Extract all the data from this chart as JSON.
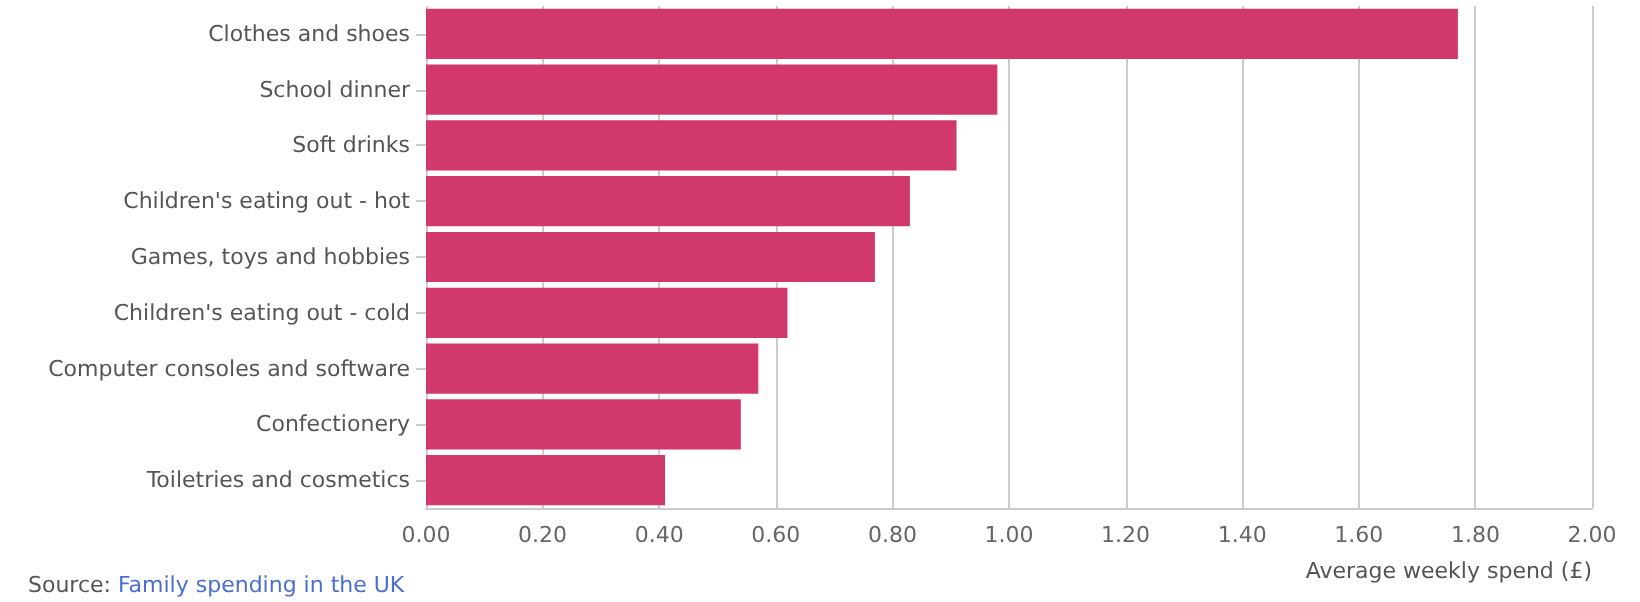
{
  "chart_data": {
    "type": "bar",
    "orientation": "horizontal",
    "categories": [
      "Clothes and shoes",
      "School dinner",
      "Soft drinks",
      "Children's eating out - hot",
      "Games, toys and hobbies",
      "Children's eating out - cold",
      "Computer consoles and software",
      "Confectionery",
      "Toiletries and cosmetics"
    ],
    "values": [
      1.77,
      0.98,
      0.91,
      0.83,
      0.77,
      0.62,
      0.57,
      0.54,
      0.41
    ],
    "color": "#d1386c",
    "xlabel": "Average weekly spend (£)",
    "xlim": [
      0,
      2
    ],
    "xticks": [
      {
        "value": 0,
        "label": "0.00"
      },
      {
        "value": 0.2,
        "label": "0.20"
      },
      {
        "value": 0.4,
        "label": "0.40"
      },
      {
        "value": 0.6,
        "label": "0.60"
      },
      {
        "value": 0.8,
        "label": "0.80"
      },
      {
        "value": 1,
        "label": "1.00"
      },
      {
        "value": 1.2,
        "label": "1.20"
      },
      {
        "value": 1.4,
        "label": "1.40"
      },
      {
        "value": 1.6,
        "label": "1.60"
      },
      {
        "value": 1.8,
        "label": "1.80"
      },
      {
        "value": 2,
        "label": "2.00"
      }
    ],
    "grid": "x",
    "annotations": [
      "Source: Family spending in the UK"
    ]
  }
}
